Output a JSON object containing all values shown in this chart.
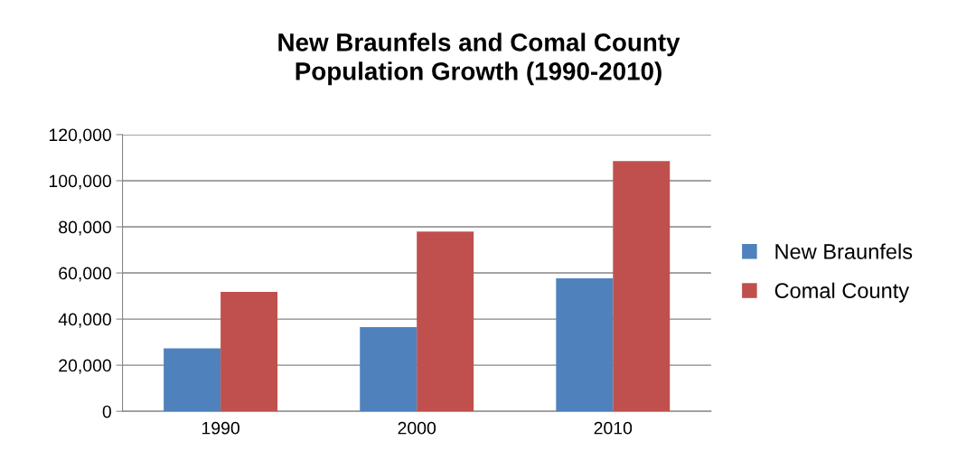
{
  "chart_data": {
    "type": "bar",
    "title": "New Braunfels and Comal County\nPopulation Growth (1990-2010)",
    "categories": [
      "1990",
      "2000",
      "2010"
    ],
    "series": [
      {
        "name": "New Braunfels",
        "color": "#4f81bd",
        "values": [
          27300,
          36500,
          57700
        ]
      },
      {
        "name": "Comal County",
        "color": "#c0504d",
        "values": [
          51800,
          78000,
          108500
        ]
      }
    ],
    "ylim": [
      0,
      120000
    ],
    "yticks": [
      {
        "value": 0,
        "label": "0"
      },
      {
        "value": 20000,
        "label": "20,000"
      },
      {
        "value": 40000,
        "label": "40,000"
      },
      {
        "value": 60000,
        "label": "60,000"
      },
      {
        "value": 80000,
        "label": "80,000"
      },
      {
        "value": 100000,
        "label": "100,000"
      },
      {
        "value": 120000,
        "label": "120,000"
      }
    ],
    "grid": "y",
    "legend": "right"
  }
}
